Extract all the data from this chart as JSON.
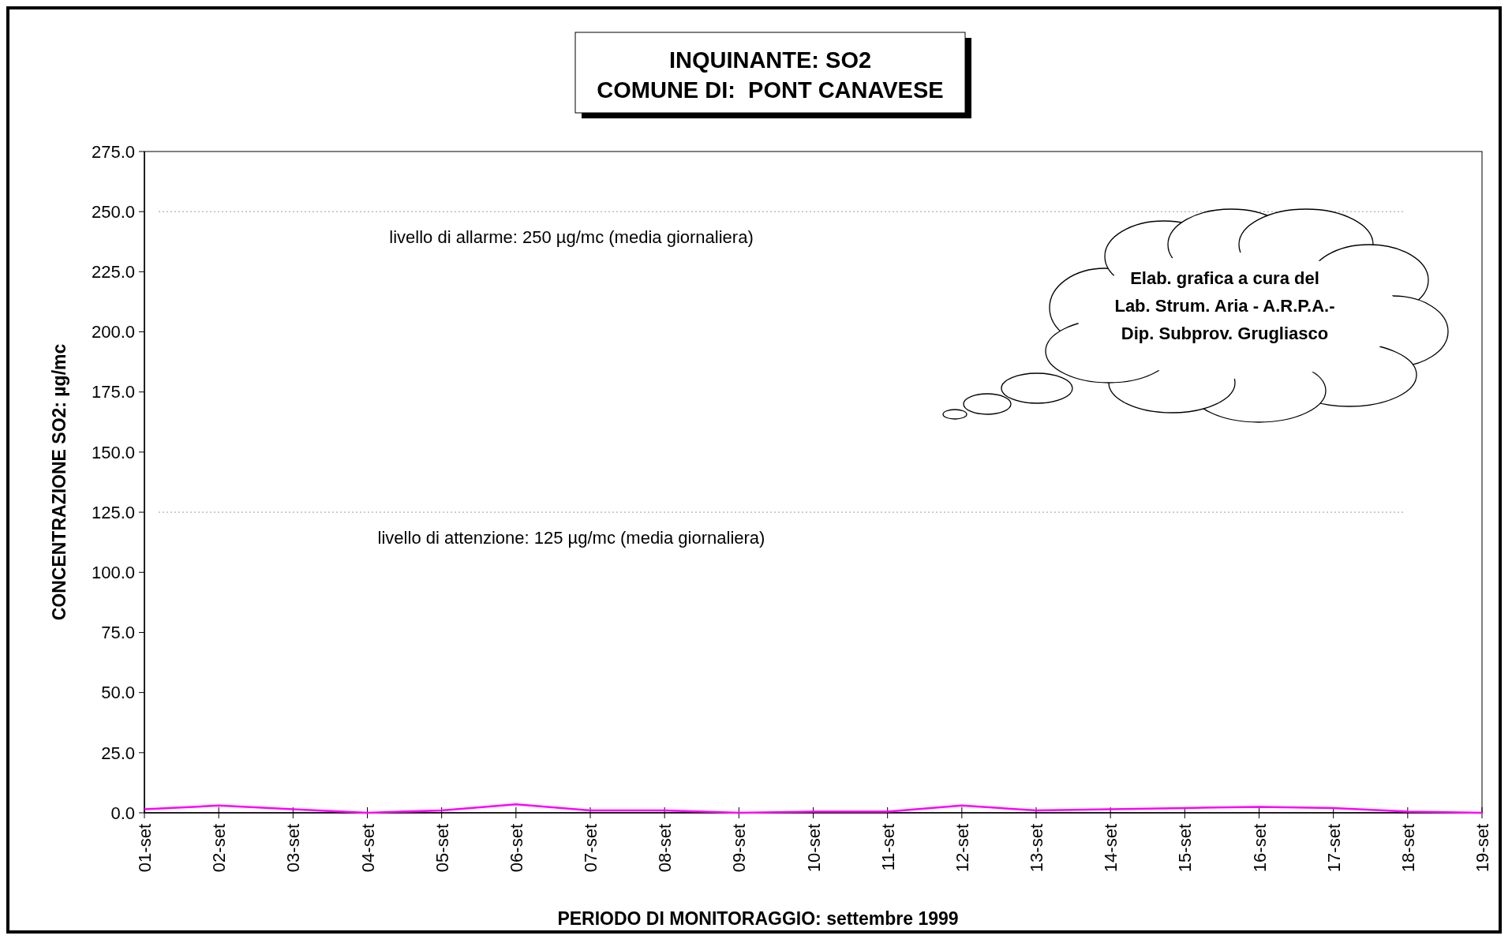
{
  "chart_data": {
    "type": "line",
    "title": "INQUINANTE: SO2\nCOMUNE DI:  PONT CANAVESE",
    "xlabel": "PERIODO DI MONITORAGGIO: settembre 1999",
    "ylabel": "CONCENTRAZIONE SO2:  µg/mc",
    "categories": [
      "01-set",
      "02-set",
      "03-set",
      "04-set",
      "05-set",
      "06-set",
      "07-set",
      "08-set",
      "09-set",
      "10-set",
      "11-set",
      "12-set",
      "13-set",
      "14-set",
      "15-set",
      "16-set",
      "17-set",
      "18-set",
      "19-set"
    ],
    "series": [
      {
        "color": "#ff00ff",
        "values": [
          1.5,
          3,
          1.5,
          0,
          1,
          3.5,
          1,
          1,
          0,
          0.5,
          0.5,
          3,
          1,
          1.5,
          2,
          2.5,
          2,
          0.5,
          0
        ]
      }
    ],
    "ylim": [
      0,
      275
    ],
    "yticks": [
      {
        "value": 0,
        "label": "0.0"
      },
      {
        "value": 25,
        "label": "25.0"
      },
      {
        "value": 50,
        "label": "50.0"
      },
      {
        "value": 75,
        "label": "75.0"
      },
      {
        "value": 100,
        "label": "100.0"
      },
      {
        "value": 125,
        "label": "125.0"
      },
      {
        "value": 150,
        "label": "150.0"
      },
      {
        "value": 175,
        "label": "175.0"
      },
      {
        "value": 200,
        "label": "200.0"
      },
      {
        "value": 225,
        "label": "225.0"
      },
      {
        "value": 250,
        "label": "250.0"
      },
      {
        "value": 275,
        "label": "275.0"
      }
    ],
    "ref_lines": [
      {
        "axis": "y",
        "value": 250,
        "label": "livello di allarme: 250 µg/mc (media giornaliera)",
        "color": "#999999",
        "line_style": "dotted"
      },
      {
        "axis": "y",
        "value": 125,
        "label": "livello di attenzione: 125 µg/mc (media giornaliera)",
        "color": "#999999",
        "line_style": "dotted"
      }
    ],
    "annotations": [
      "Elab. grafica a cura del\nLab. Strum. Aria - A.R.P.A.-\nDip. Subprov. Grugliasco"
    ],
    "grid": false,
    "marker": "none",
    "line_style": "solid"
  }
}
